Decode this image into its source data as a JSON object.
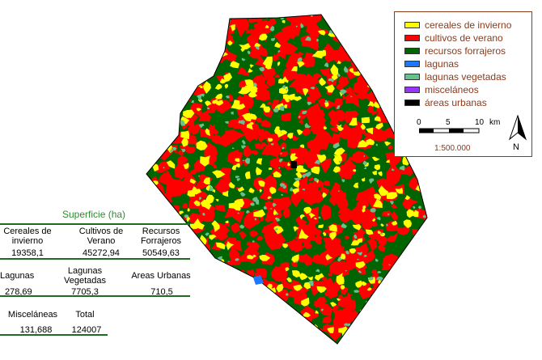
{
  "legend": {
    "items": [
      {
        "label": "cereales de invierno",
        "color": "#ffff00"
      },
      {
        "label": "cultivos de verano",
        "color": "#ff0000"
      },
      {
        "label": "recursos forrajeros",
        "color": "#006400"
      },
      {
        "label": "lagunas",
        "color": "#1e78ff"
      },
      {
        "label": "lagunas vegetadas",
        "color": "#66c28c"
      },
      {
        "label": "misceláneos",
        "color": "#9933ff"
      },
      {
        "label": "áreas urbanas",
        "color": "#000000"
      }
    ],
    "scale_ticks": [
      "0",
      "5",
      "10"
    ],
    "scale_unit": "km",
    "scale_ratio": "1:500.000",
    "north": "N"
  },
  "table": {
    "title": "Superficie (ha)",
    "row1": [
      {
        "header": "Cereales de invierno",
        "value": "19358,1"
      },
      {
        "header": "Cultivos de Verano",
        "value": "45272,94"
      },
      {
        "header": "Recursos Forrajeros",
        "value": "50549,63"
      }
    ],
    "row2": [
      {
        "header": "Lagunas",
        "value": "278,69"
      },
      {
        "header": "Lagunas Vegetadas",
        "value": "7705,3"
      },
      {
        "header": "Areas Urbanas",
        "value": "710,5"
      }
    ],
    "row3": [
      {
        "header": "Misceláneas",
        "value": "131,688"
      },
      {
        "header": "Total",
        "value": "124007"
      }
    ]
  }
}
